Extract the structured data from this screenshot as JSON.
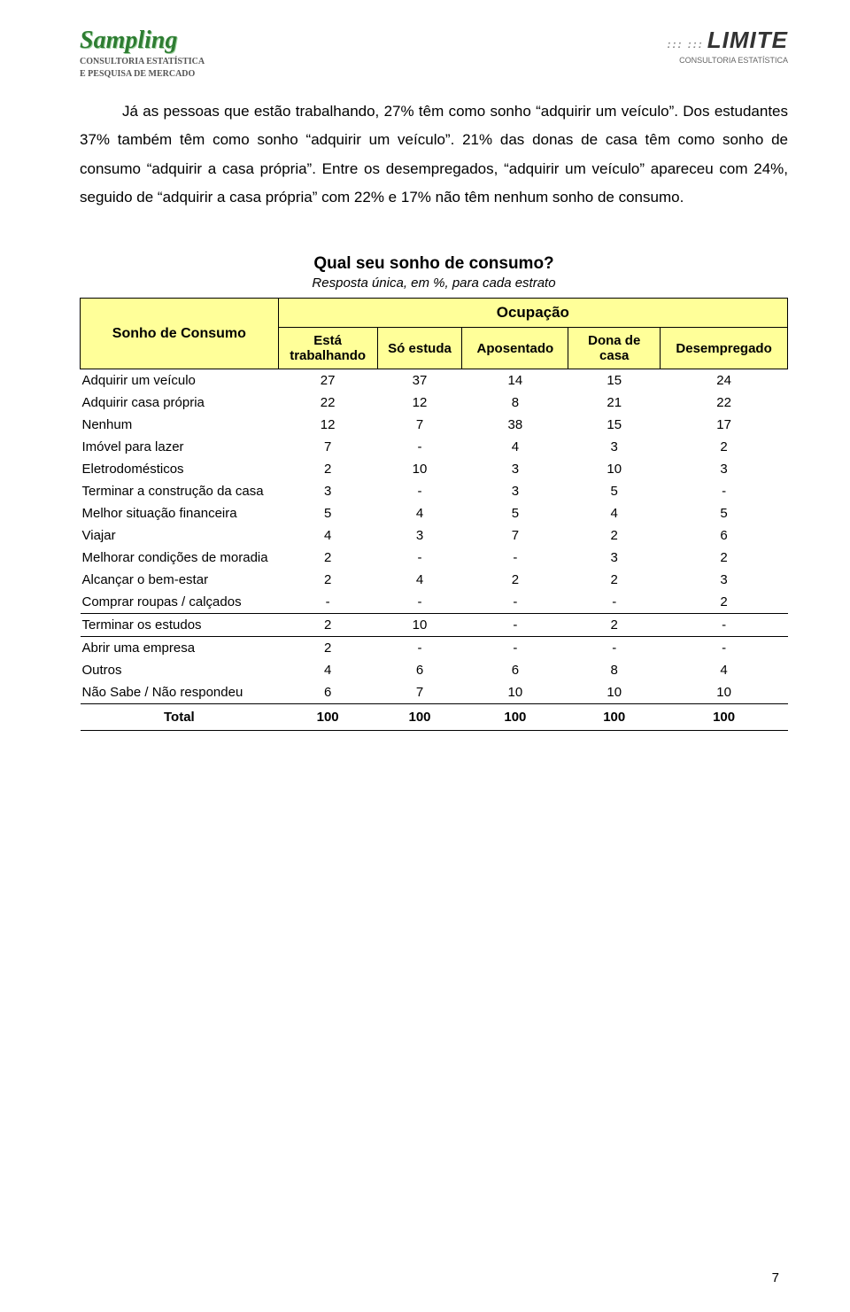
{
  "logos": {
    "left_brand": "Sampling",
    "left_tag1": "CONSULTORIA ESTATÍSTICA",
    "left_tag2": "E PESQUISA DE MERCADO",
    "right_brand": "LIMITE",
    "right_tag": "CONSULTORIA ESTATÍSTICA"
  },
  "paragraph": "Já as pessoas que estão trabalhando, 27% têm como sonho “adquirir um veículo”. Dos estudantes 37% também têm como sonho “adquirir um veículo”. 21% das donas de casa têm como sonho de consumo “adquirir a casa própria”. Entre os desempregados, “adquirir um veículo” apareceu com 24%, seguido de “adquirir a casa própria” com 22% e 17% não têm nenhum sonho de consumo.",
  "table": {
    "title": "Qual seu sonho de consumo?",
    "subtitle": "Resposta única, em %, para cada estrato",
    "row_header": "Sonho de Consumo",
    "group_header": "Ocupação",
    "columns": [
      "Está trabalhando",
      "Só estuda",
      "Aposentado",
      "Dona de casa",
      "Desempregado"
    ],
    "col_widths": [
      "28%",
      "14%",
      "12%",
      "15%",
      "13%",
      "18%"
    ],
    "rows": [
      {
        "label": "Adquirir um veículo",
        "v": [
          "27",
          "37",
          "14",
          "15",
          "24"
        ],
        "sep": false
      },
      {
        "label": "Adquirir casa própria",
        "v": [
          "22",
          "12",
          "8",
          "21",
          "22"
        ],
        "sep": false
      },
      {
        "label": "Nenhum",
        "v": [
          "12",
          "7",
          "38",
          "15",
          "17"
        ],
        "sep": false
      },
      {
        "label": "Imóvel para lazer",
        "v": [
          "7",
          "-",
          "4",
          "3",
          "2"
        ],
        "sep": false
      },
      {
        "label": "Eletrodomésticos",
        "v": [
          "2",
          "10",
          "3",
          "10",
          "3"
        ],
        "sep": false
      },
      {
        "label": "Terminar a construção da casa",
        "v": [
          "3",
          "-",
          "3",
          "5",
          "-"
        ],
        "sep": false
      },
      {
        "label": "Melhor situação financeira",
        "v": [
          "5",
          "4",
          "5",
          "4",
          "5"
        ],
        "sep": false
      },
      {
        "label": "Viajar",
        "v": [
          "4",
          "3",
          "7",
          "2",
          "6"
        ],
        "sep": false
      },
      {
        "label": "Melhorar condições de moradia",
        "v": [
          "2",
          "-",
          "-",
          "3",
          "2"
        ],
        "sep": false
      },
      {
        "label": "Alcançar o bem-estar",
        "v": [
          "2",
          "4",
          "2",
          "2",
          "3"
        ],
        "sep": false
      },
      {
        "label": "Comprar roupas / calçados",
        "v": [
          "-",
          "-",
          "-",
          "-",
          "2"
        ],
        "sep": true
      },
      {
        "label": "Terminar os estudos",
        "v": [
          "2",
          "10",
          "-",
          "2",
          "-"
        ],
        "sep": true
      },
      {
        "label": "Abrir uma empresa",
        "v": [
          "2",
          "-",
          "-",
          "-",
          "-"
        ],
        "sep": false
      },
      {
        "label": "Outros",
        "v": [
          "4",
          "6",
          "6",
          "8",
          "4"
        ],
        "sep": false
      },
      {
        "label": "Não Sabe / Não respondeu",
        "v": [
          "6",
          "7",
          "10",
          "10",
          "10"
        ],
        "sep": false
      }
    ],
    "total": {
      "label": "Total",
      "v": [
        "100",
        "100",
        "100",
        "100",
        "100"
      ]
    }
  },
  "page_number": "7",
  "colors": {
    "header_bg": "#ffff99",
    "border": "#000000",
    "text": "#000000",
    "logo_green": "#2e7d32"
  }
}
